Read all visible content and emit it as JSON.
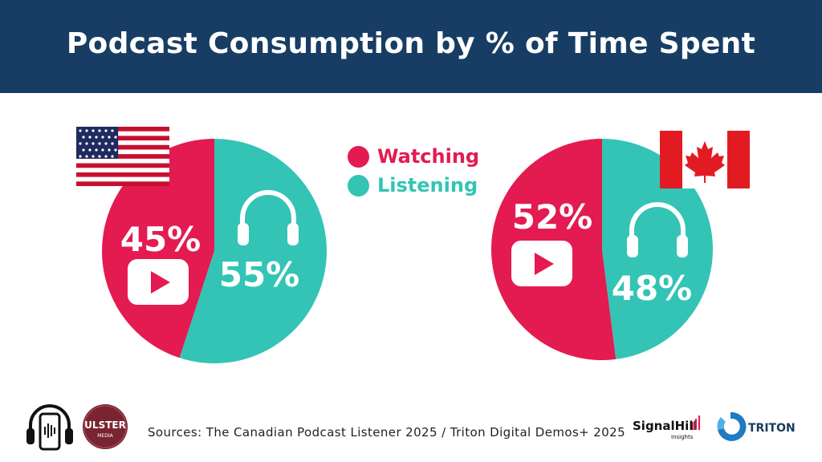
{
  "header": {
    "title": "Podcast Consumption by % of Time Spent"
  },
  "legend": [
    {
      "label": "Watching",
      "color": "#e31b50"
    },
    {
      "label": "Listening",
      "color": "#33c4b6"
    }
  ],
  "chart_data": [
    {
      "type": "pie",
      "title": "United States",
      "categories": [
        "Watching",
        "Listening"
      ],
      "values": [
        45,
        55
      ],
      "labels": [
        "45%",
        "55%"
      ],
      "colors": [
        "#e31b50",
        "#33c4b6"
      ]
    },
    {
      "type": "pie",
      "title": "Canada",
      "categories": [
        "Watching",
        "Listening"
      ],
      "values": [
        52,
        48
      ],
      "labels": [
        "52%",
        "48%"
      ],
      "colors": [
        "#e31b50",
        "#33c4b6"
      ]
    }
  ],
  "footer": {
    "source": "Sources: The Canadian Podcast Listener 2025 / Triton Digital Demos+ 2025",
    "logo_ulster_top": "ULSTER",
    "logo_ulster_bottom": "MEDIA",
    "logo_signal": "SignalHill",
    "logo_signal_sub": "Insights",
    "logo_triton": "TRITON"
  }
}
